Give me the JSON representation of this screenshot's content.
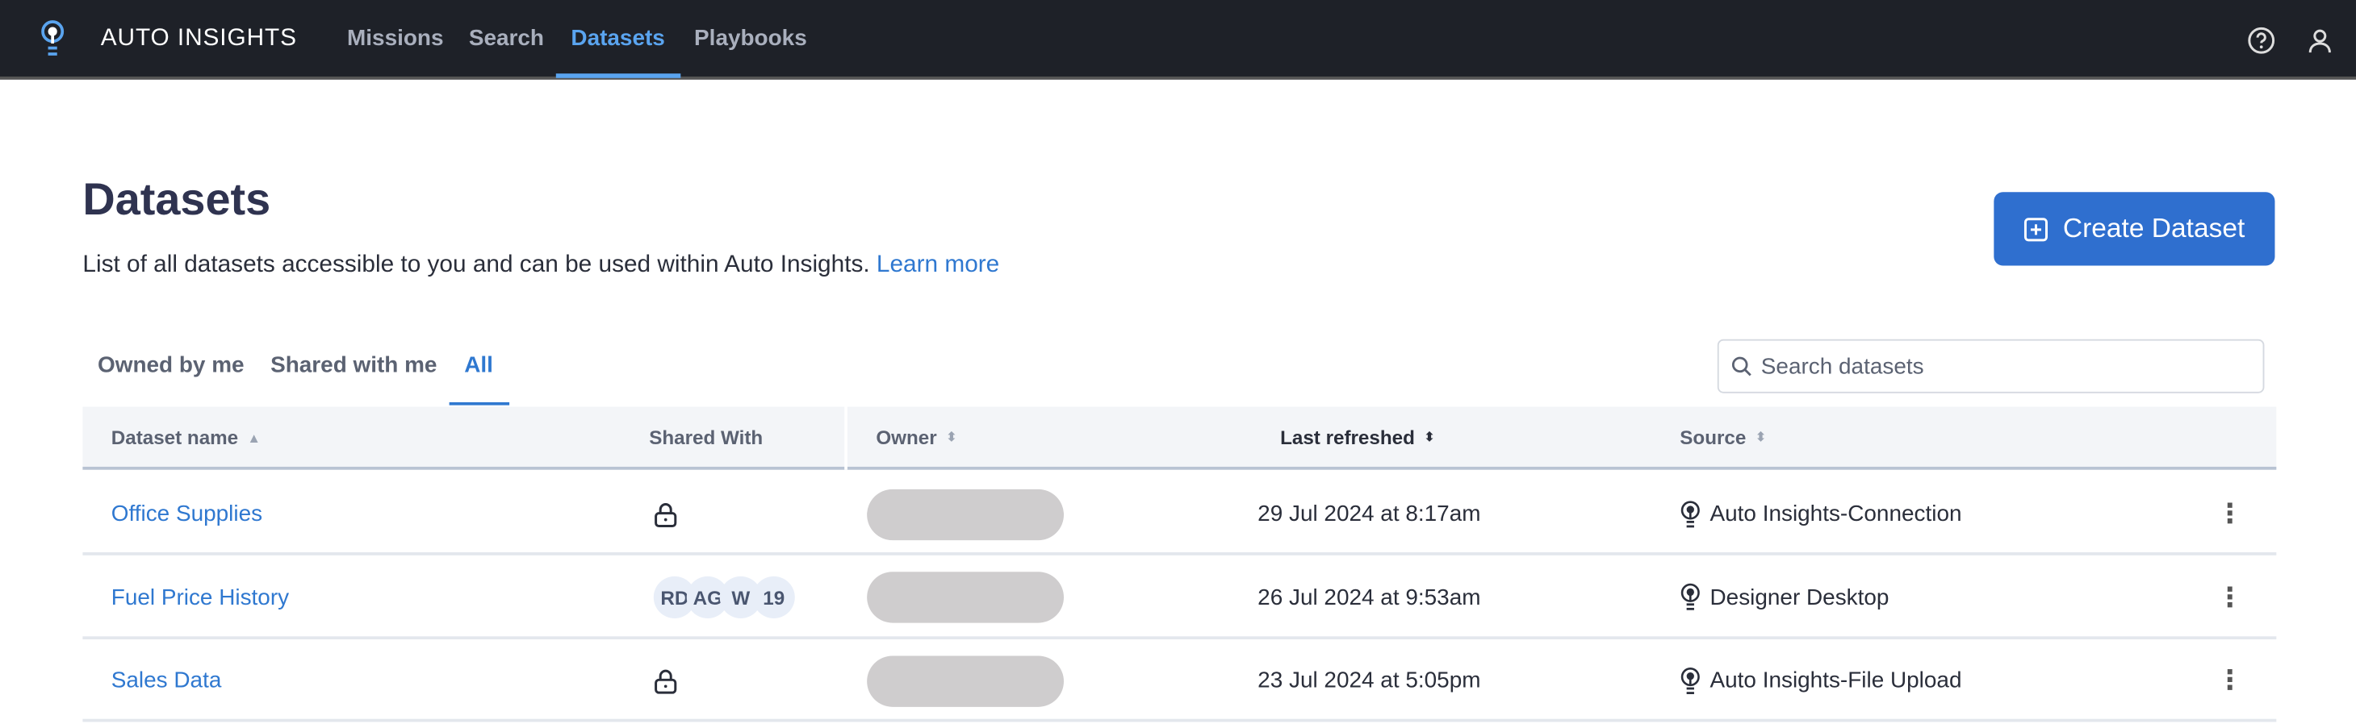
{
  "nav": {
    "brand": "AUTO INSIGHTS",
    "links": [
      "Missions",
      "Search",
      "Datasets",
      "Playbooks"
    ],
    "active": "Datasets",
    "icons": [
      "lightbulb-logo-icon",
      "help-icon",
      "user-icon"
    ]
  },
  "page": {
    "title": "Datasets",
    "subtitle": "List of all datasets accessible to you and can be used within Auto Insights.",
    "learn_more": "Learn more",
    "create_button": "Create Dataset"
  },
  "tabs": {
    "items": [
      "Owned by me",
      "Shared with me",
      "All"
    ],
    "active": "All"
  },
  "search": {
    "placeholder": "Search datasets",
    "value": ""
  },
  "table": {
    "columns": [
      "Dataset name",
      "Shared With",
      "Owner",
      "Last refreshed",
      "Source"
    ],
    "sorted_column": "Last refreshed",
    "rows": [
      {
        "name": "Office Supplies",
        "shared": "private",
        "avatars": [],
        "refreshed": "29 Jul 2024 at 8:17am",
        "source": "Auto Insights-Connection"
      },
      {
        "name": "Fuel Price History",
        "shared": "users",
        "avatars": [
          "RD",
          "AG",
          "W",
          "19"
        ],
        "refreshed": "26 Jul 2024 at 9:53am",
        "source": "Designer Desktop"
      },
      {
        "name": "Sales Data",
        "shared": "private",
        "avatars": [],
        "refreshed": "23 Jul 2024 at 5:05pm",
        "source": "Auto Insights-File Upload"
      }
    ]
  },
  "colors": {
    "nav_bg": "#1e2128",
    "accent": "#2f6fcf",
    "link": "#2f78d0",
    "active_nav": "#5aa4ef"
  }
}
